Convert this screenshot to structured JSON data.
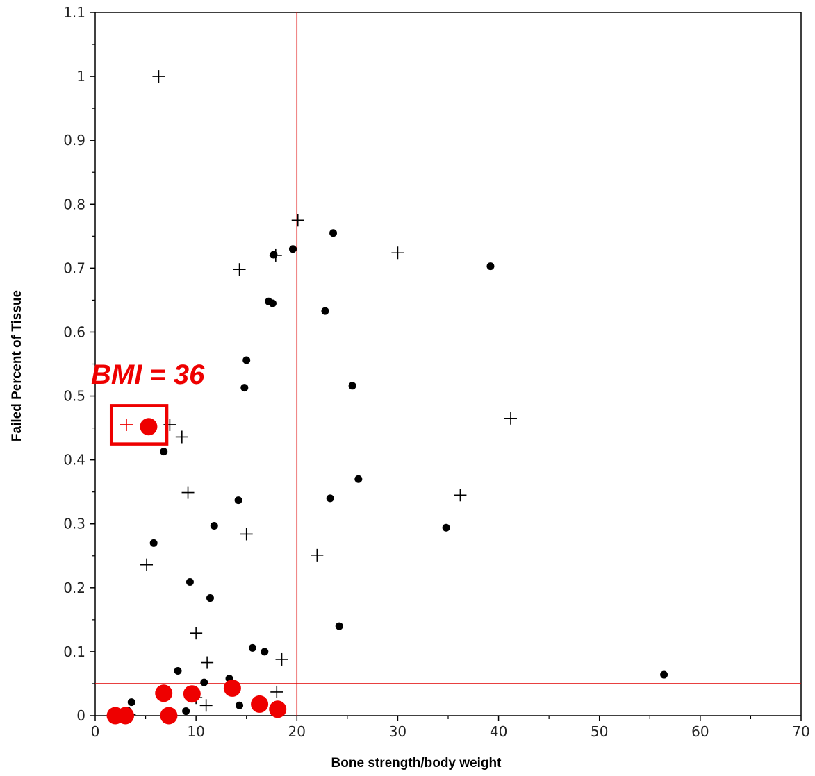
{
  "chart_data": {
    "type": "scatter",
    "xlabel": "Bone strength/body weight",
    "ylabel": "Failed Percent of Tissue",
    "xlim": [
      0,
      70
    ],
    "ylim": [
      0,
      1.1
    ],
    "xticks": [
      "0",
      "10",
      "20",
      "30",
      "40",
      "50",
      "60",
      "70"
    ],
    "yticks": [
      "0",
      "0.1",
      "0.2",
      "0.3",
      "0.4",
      "0.5",
      "0.6",
      "0.7",
      "0.8",
      "0.9",
      "1",
      "1.1"
    ],
    "reference_lines": {
      "vertical_x": 20,
      "horizontal_y": 0.05,
      "color": "#e00000"
    },
    "grid": false,
    "series": [
      {
        "marker": "dot",
        "color": "#000000",
        "points": [
          [
            6.8,
            0.413
          ],
          [
            5.8,
            0.27
          ],
          [
            9.4,
            0.209
          ],
          [
            11.4,
            0.184
          ],
          [
            11.8,
            0.297
          ],
          [
            14.2,
            0.337
          ],
          [
            14.8,
            0.513
          ],
          [
            15.0,
            0.556
          ],
          [
            17.2,
            0.648
          ],
          [
            17.6,
            0.645
          ],
          [
            17.7,
            0.721
          ],
          [
            19.6,
            0.73
          ],
          [
            22.8,
            0.633
          ],
          [
            23.6,
            0.755
          ],
          [
            25.5,
            0.516
          ],
          [
            23.3,
            0.34
          ],
          [
            26.1,
            0.37
          ],
          [
            24.2,
            0.14
          ],
          [
            15.6,
            0.106
          ],
          [
            16.8,
            0.1
          ],
          [
            13.3,
            0.058
          ],
          [
            10.8,
            0.052
          ],
          [
            8.2,
            0.07
          ],
          [
            6.8,
            0.037
          ],
          [
            9.8,
            0.04
          ],
          [
            14.3,
            0.016
          ],
          [
            9.0,
            0.007
          ],
          [
            7.2,
            0.005
          ],
          [
            3.6,
            0.021
          ],
          [
            3.2,
            0.008
          ],
          [
            34.8,
            0.294
          ],
          [
            39.2,
            0.703
          ],
          [
            56.4,
            0.064
          ]
        ]
      },
      {
        "marker": "plus",
        "color": "#000000",
        "points": [
          [
            6.3,
            1.0
          ],
          [
            20.1,
            0.775
          ],
          [
            14.3,
            0.698
          ],
          [
            17.9,
            0.72
          ],
          [
            30.0,
            0.724
          ],
          [
            7.4,
            0.455
          ],
          [
            8.6,
            0.436
          ],
          [
            41.2,
            0.465
          ],
          [
            9.2,
            0.349
          ],
          [
            15.0,
            0.284
          ],
          [
            36.2,
            0.345
          ],
          [
            22.0,
            0.251
          ],
          [
            5.1,
            0.236
          ],
          [
            10.0,
            0.129
          ],
          [
            11.1,
            0.083
          ],
          [
            18.5,
            0.088
          ],
          [
            18.0,
            0.037
          ],
          [
            10.0,
            0.028
          ],
          [
            11.0,
            0.016
          ],
          [
            3.4,
            0.002
          ]
        ]
      },
      {
        "marker": "large-dot",
        "color": "#ee0000",
        "points": [
          [
            5.3,
            0.452
          ],
          [
            2.0,
            0.0
          ],
          [
            3.0,
            0.0
          ],
          [
            6.8,
            0.035
          ],
          [
            7.3,
            0.0
          ],
          [
            9.6,
            0.034
          ],
          [
            13.6,
            0.043
          ],
          [
            16.3,
            0.018
          ],
          [
            18.1,
            0.01
          ]
        ]
      },
      {
        "marker": "plus",
        "color": "#ee0000",
        "points": [
          [
            3.1,
            0.455
          ]
        ]
      }
    ],
    "annotations": [
      {
        "text": "BMI = 36",
        "color": "#ee0000",
        "box_around": {
          "x": [
            1.6,
            7.1
          ],
          "y": [
            0.425,
            0.485
          ]
        }
      }
    ]
  }
}
